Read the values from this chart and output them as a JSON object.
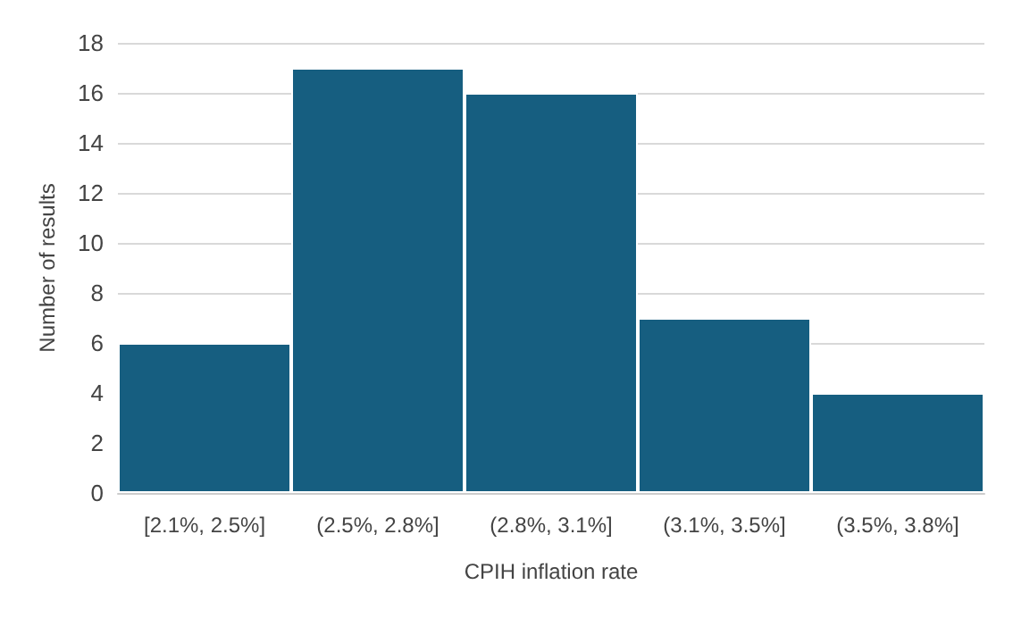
{
  "chart_data": {
    "type": "bar",
    "xlabel": "CPIH inflation rate",
    "ylabel": "Number of results",
    "categories": [
      "[2.1%, 2.5%]",
      "(2.5%, 2.8%]",
      "(2.8%, 3.1%]",
      "(3.1%, 3.5%]",
      "(3.5%, 3.8%]"
    ],
    "values": [
      6,
      17,
      16,
      7,
      4
    ],
    "color": "#165e80",
    "ylim": [
      0,
      18
    ],
    "yticks": [
      0,
      2,
      4,
      6,
      8,
      10,
      12,
      14,
      16,
      18
    ],
    "grid": "y"
  }
}
